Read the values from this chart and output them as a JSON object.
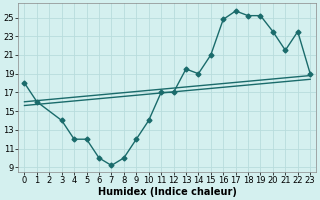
{
  "xlabel": "Humidex (Indice chaleur)",
  "bg_color": "#d4f0ef",
  "grid_color": "#b8dcdc",
  "line_color": "#1a6b6b",
  "xlim": [
    -0.5,
    23.5
  ],
  "ylim": [
    8.5,
    26.5
  ],
  "xticks": [
    0,
    1,
    2,
    3,
    4,
    5,
    6,
    7,
    8,
    9,
    10,
    11,
    12,
    13,
    14,
    15,
    16,
    17,
    18,
    19,
    20,
    21,
    22,
    23
  ],
  "yticks": [
    9,
    11,
    13,
    15,
    17,
    19,
    21,
    23,
    25
  ],
  "curve_x": [
    0,
    1,
    3,
    4,
    5,
    6,
    7,
    8,
    9,
    10,
    11,
    12,
    13,
    14,
    15,
    16,
    17,
    18,
    19,
    20,
    21,
    22,
    23
  ],
  "curve_y": [
    18,
    16,
    14,
    12,
    12,
    10,
    9.2,
    10,
    12,
    14,
    17,
    17,
    19.5,
    19,
    21,
    24.8,
    25.7,
    25.2,
    25.2,
    23.5,
    21.5,
    23.5,
    19
  ],
  "line1_x": [
    0,
    23
  ],
  "line1_y": [
    16.0,
    18.8
  ],
  "line2_x": [
    0,
    23
  ],
  "line2_y": [
    15.6,
    18.4
  ],
  "marker_size": 2.5,
  "line_width": 1.0,
  "tick_fontsize": 6,
  "label_fontsize": 7
}
